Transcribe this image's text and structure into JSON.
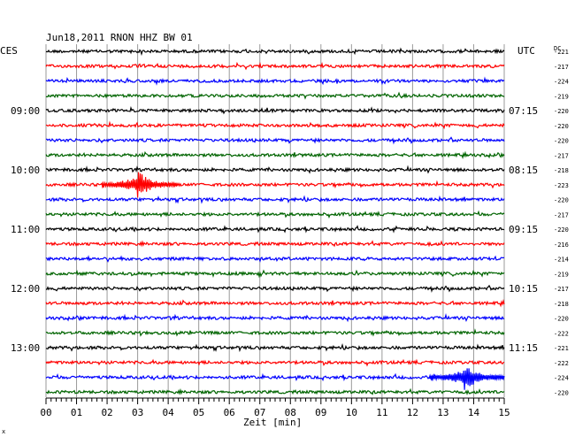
{
  "header": {
    "title": "Jun18,2011   RNON HHZ BW 01",
    "left_tz": "CES",
    "right_tz": "UTC",
    "dc_label": "DC"
  },
  "chart_data": {
    "type": "line",
    "title": "Jun18,2011   RNON HHZ BW 01",
    "xlabel": "Zeit [min]",
    "ylabel": "",
    "x_ticks": [
      "00",
      "01",
      "02",
      "03",
      "04",
      "05",
      "06",
      "07",
      "08",
      "09",
      "10",
      "11",
      "12",
      "13",
      "14",
      "15"
    ],
    "xlim": [
      0,
      15
    ],
    "grid": true,
    "trace_colors": [
      "#000000",
      "#ff0000",
      "#0000ff",
      "#006400"
    ],
    "left_time_labels": [
      "09:00",
      "10:00",
      "11:00",
      "12:00",
      "13:00"
    ],
    "right_time_labels": [
      "07:15",
      "08:15",
      "09:15",
      "10:15",
      "11:15"
    ],
    "dc_offsets": [
      -221,
      -217,
      -224,
      -219,
      -220,
      -220,
      -220,
      -217,
      -218,
      -223,
      -220,
      -217,
      -220,
      -216,
      -214,
      -219,
      -217,
      -218,
      -220,
      -222,
      -221,
      -222,
      -224,
      -220
    ],
    "events": [
      {
        "trace_index": 9,
        "minute": 3.0,
        "amplitude": "large",
        "label": ""
      },
      {
        "trace_index": 22,
        "minute": 13.7,
        "amplitude": "large",
        "label": ""
      }
    ]
  }
}
